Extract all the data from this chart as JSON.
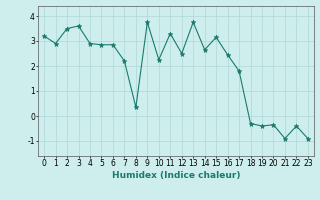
{
  "x": [
    0,
    1,
    2,
    3,
    4,
    5,
    6,
    7,
    8,
    9,
    10,
    11,
    12,
    13,
    14,
    15,
    16,
    17,
    18,
    19,
    20,
    21,
    22,
    23
  ],
  "y": [
    3.2,
    2.9,
    3.5,
    3.6,
    2.9,
    2.85,
    2.85,
    2.2,
    0.35,
    3.75,
    2.25,
    3.3,
    2.5,
    3.75,
    2.65,
    3.15,
    2.45,
    1.8,
    -0.3,
    -0.4,
    -0.35,
    -0.9,
    -0.4,
    -0.9
  ],
  "line_color": "#1a7a6e",
  "marker": "*",
  "marker_size": 3.5,
  "bg_color": "#ceeeed",
  "grid_color": "#aed8d5",
  "xlabel": "Humidex (Indice chaleur)",
  "xlim": [
    -0.5,
    23.5
  ],
  "ylim": [
    -1.6,
    4.4
  ],
  "yticks": [
    -1,
    0,
    1,
    2,
    3,
    4
  ],
  "xticks": [
    0,
    1,
    2,
    3,
    4,
    5,
    6,
    7,
    8,
    9,
    10,
    11,
    12,
    13,
    14,
    15,
    16,
    17,
    18,
    19,
    20,
    21,
    22,
    23
  ],
  "tick_fontsize": 5.5,
  "xlabel_fontsize": 6.5,
  "linewidth": 0.8
}
